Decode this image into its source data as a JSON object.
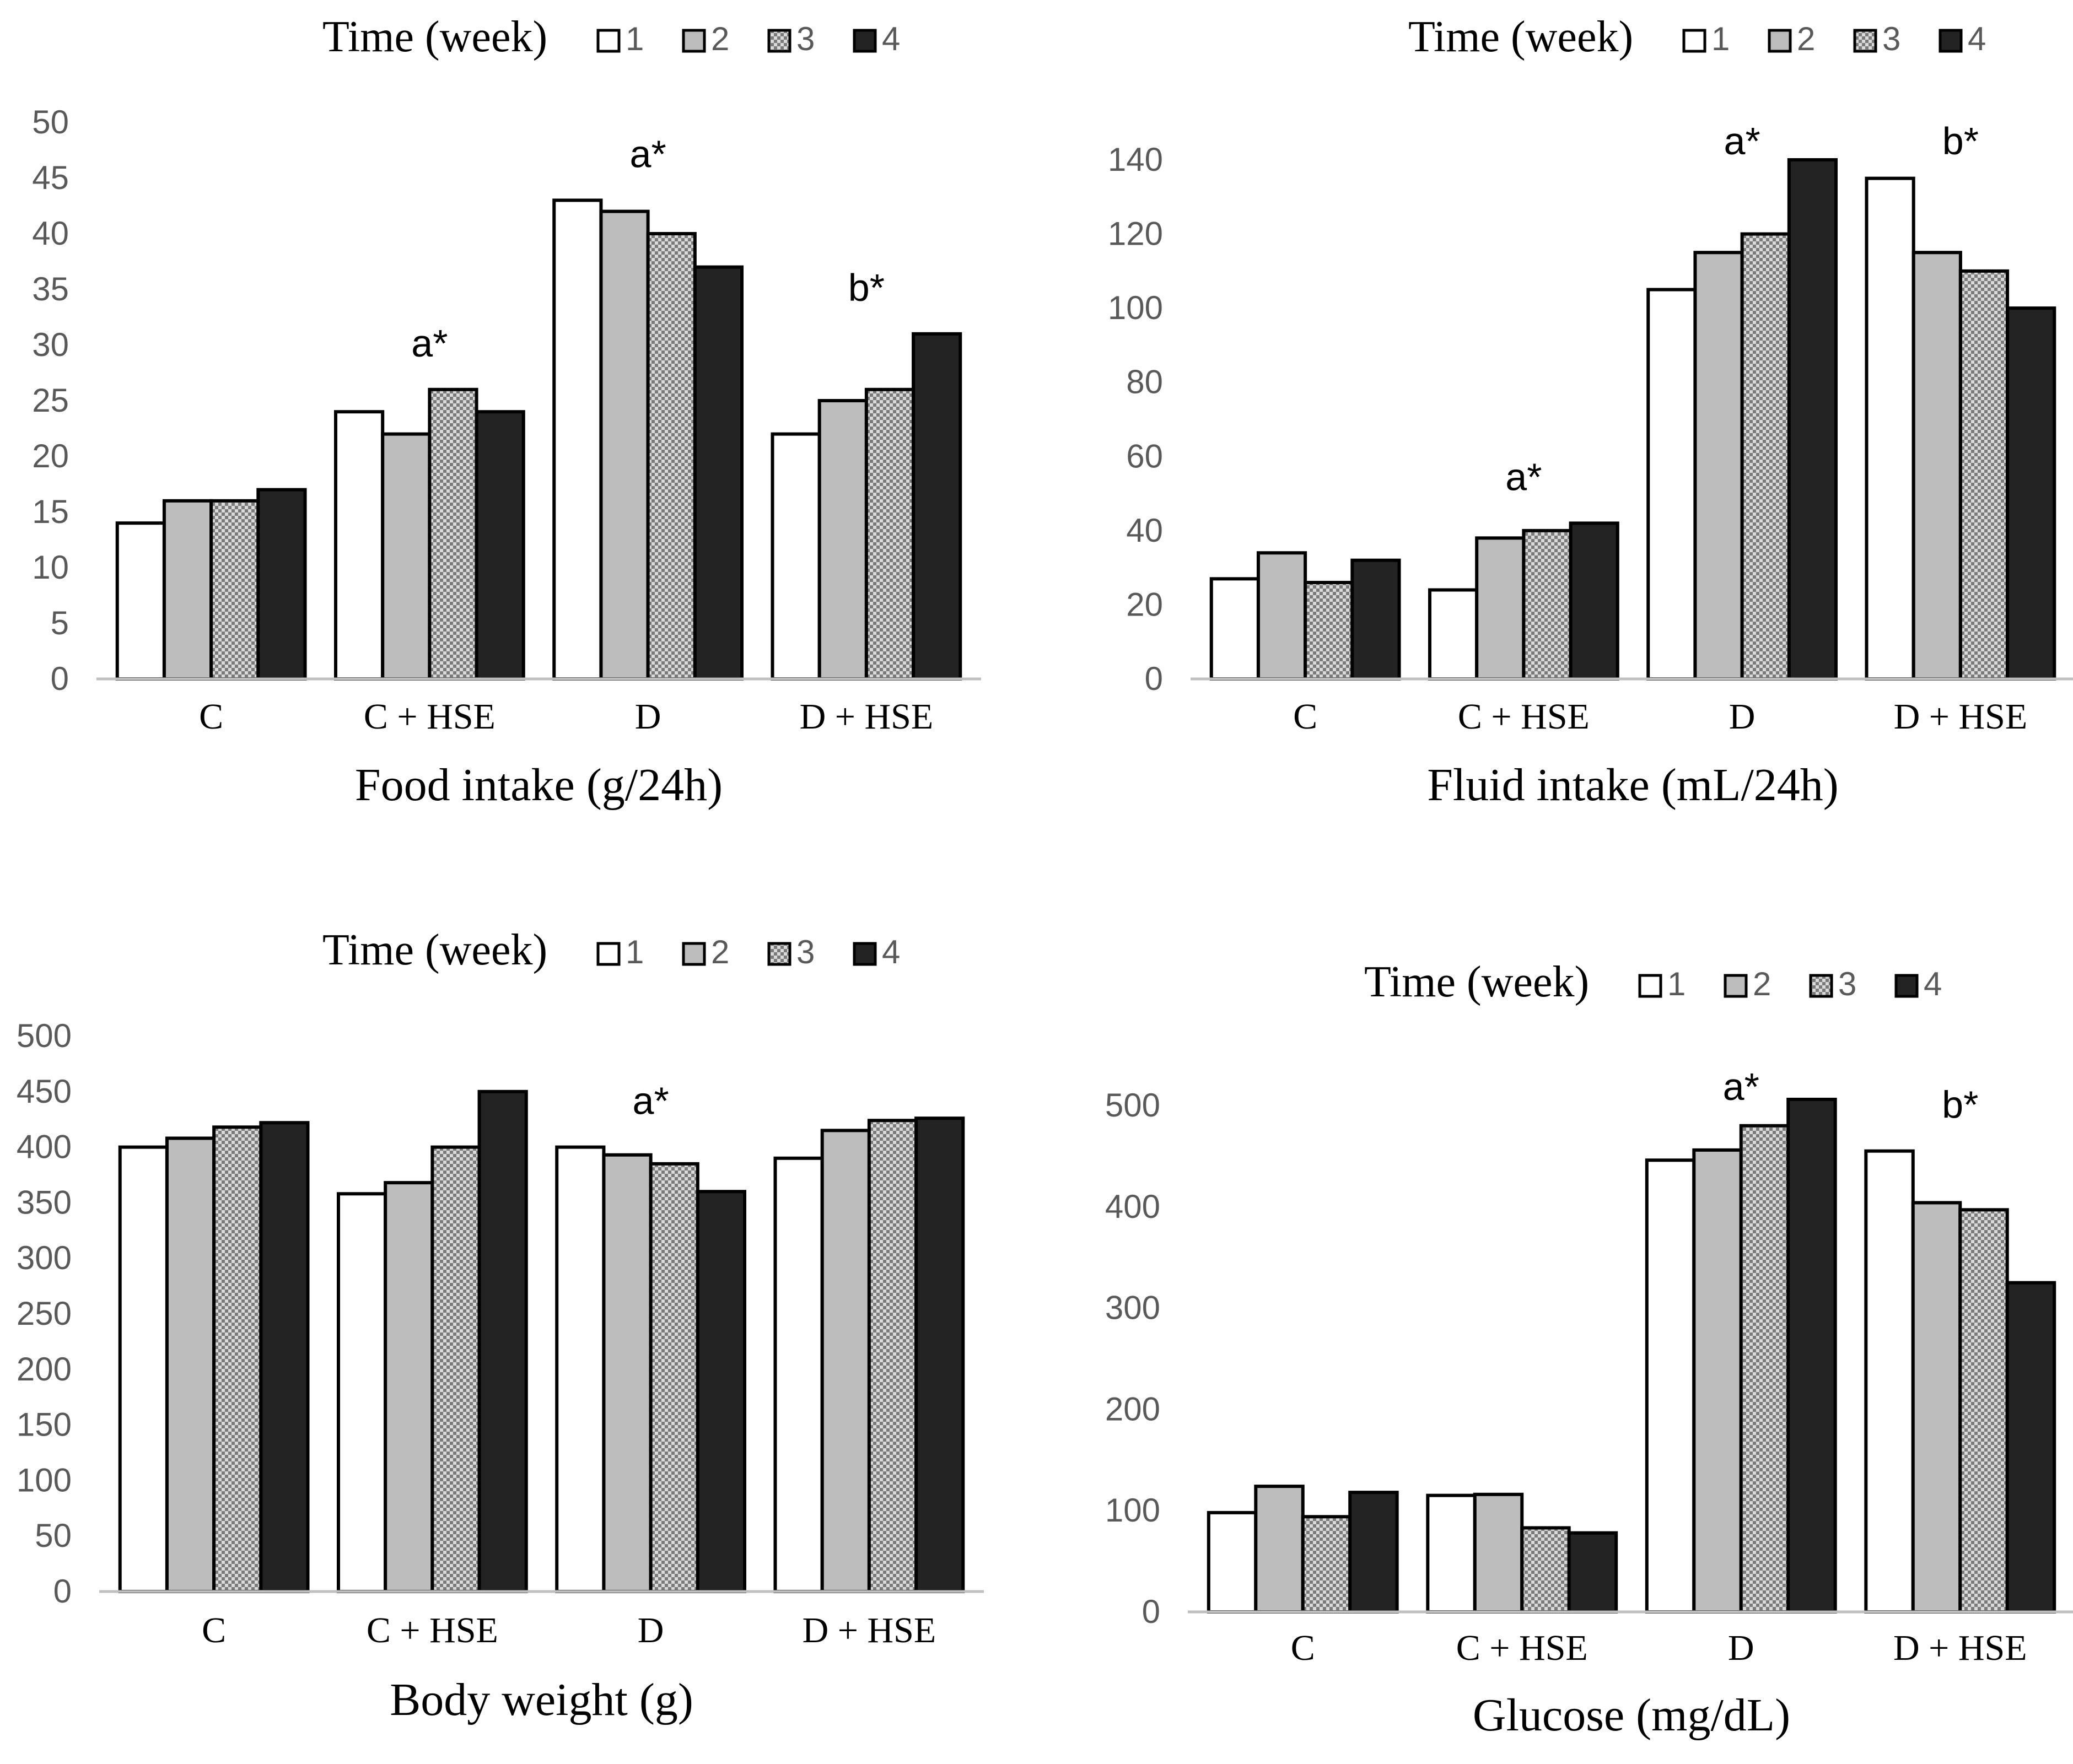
{
  "legend_title": "Time (week)",
  "series_names": [
    "1",
    "2",
    "3",
    "4"
  ],
  "colors": {
    "week1": "#ffffff",
    "week2": "#bdbdbd",
    "week3": "#a9a9a9",
    "week4": "#232323",
    "axis": "#bfbfbf",
    "tick_text": "#595959",
    "text": "#000000"
  },
  "chart_data": [
    {
      "type": "bar",
      "title": "Food intake (g/24h)",
      "legend_title": "Time (week)",
      "categories": [
        "C",
        "C + HSE",
        "D",
        "D + HSE"
      ],
      "series": [
        {
          "name": "1",
          "values": [
            14,
            24,
            43,
            22
          ]
        },
        {
          "name": "2",
          "values": [
            16,
            22,
            42,
            25
          ]
        },
        {
          "name": "3",
          "values": [
            16,
            26,
            40,
            26
          ]
        },
        {
          "name": "4",
          "values": [
            17,
            24,
            37,
            31
          ]
        }
      ],
      "ylim": [
        0,
        50
      ],
      "yticks": [
        0,
        5,
        10,
        15,
        20,
        25,
        30,
        35,
        40,
        45,
        50
      ],
      "annotations": [
        {
          "category": "C + HSE",
          "text": "a*"
        },
        {
          "category": "D",
          "text": "a*"
        },
        {
          "category": "D + HSE",
          "text": "b*"
        }
      ]
    },
    {
      "type": "bar",
      "title": "Fluid intake (mL/24h)",
      "legend_title": "Time (week)",
      "categories": [
        "C",
        "C + HSE",
        "D",
        "D + HSE"
      ],
      "series": [
        {
          "name": "1",
          "values": [
            27,
            24,
            105,
            135
          ]
        },
        {
          "name": "2",
          "values": [
            34,
            38,
            115,
            115
          ]
        },
        {
          "name": "3",
          "values": [
            26,
            40,
            120,
            110
          ]
        },
        {
          "name": "4",
          "values": [
            32,
            42,
            140,
            100
          ]
        }
      ],
      "ylim": [
        0,
        140
      ],
      "yticks": [
        0,
        20,
        40,
        60,
        80,
        100,
        120,
        140
      ],
      "annotations": [
        {
          "category": "C + HSE",
          "text": "a*"
        },
        {
          "category": "D",
          "text": "a*"
        },
        {
          "category": "D + HSE",
          "text": "b*"
        }
      ]
    },
    {
      "type": "bar",
      "title": "Body weight (g)",
      "legend_title": "Time (week)",
      "categories": [
        "C",
        "C + HSE",
        "D",
        "D + HSE"
      ],
      "series": [
        {
          "name": "1",
          "values": [
            400,
            358,
            400,
            390
          ]
        },
        {
          "name": "2",
          "values": [
            408,
            368,
            393,
            415
          ]
        },
        {
          "name": "3",
          "values": [
            418,
            400,
            385,
            424
          ]
        },
        {
          "name": "4",
          "values": [
            422,
            450,
            360,
            426
          ]
        }
      ],
      "ylim": [
        0,
        500
      ],
      "yticks": [
        0,
        50,
        100,
        150,
        200,
        250,
        300,
        350,
        400,
        450,
        500
      ],
      "annotations": [
        {
          "category": "D",
          "text": "a*"
        }
      ]
    },
    {
      "type": "bar",
      "title": "Glucose (mg/dL)",
      "legend_title": "Time (week)",
      "categories": [
        "C",
        "C + HSE",
        "D",
        "D + HSE"
      ],
      "series": [
        {
          "name": "1",
          "values": [
            98,
            115,
            446,
            455
          ]
        },
        {
          "name": "2",
          "values": [
            124,
            116,
            456,
            404
          ]
        },
        {
          "name": "3",
          "values": [
            94,
            83,
            480,
            397
          ]
        },
        {
          "name": "4",
          "values": [
            118,
            78,
            506,
            325
          ]
        }
      ],
      "ylim": [
        0,
        500
      ],
      "yticks": [
        0,
        100,
        200,
        300,
        400,
        500
      ],
      "annotations": [
        {
          "category": "D",
          "text": "a*"
        },
        {
          "category": "D + HSE",
          "text": "b*"
        }
      ]
    }
  ]
}
